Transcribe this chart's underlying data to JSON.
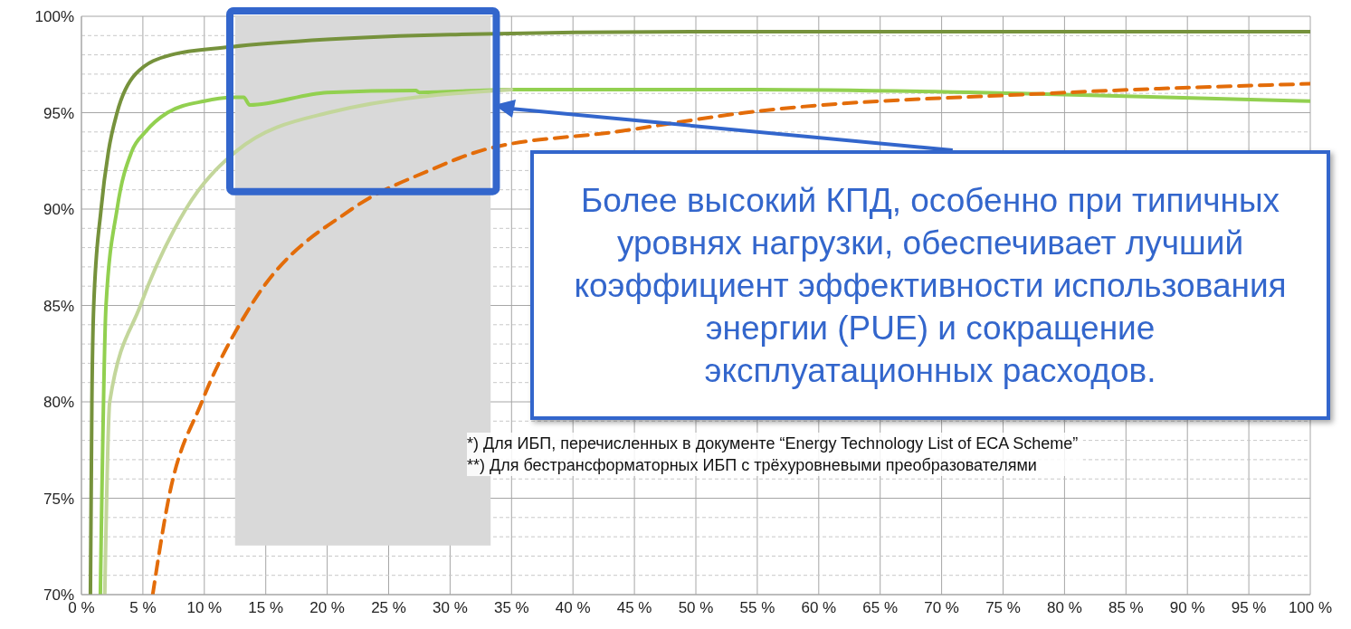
{
  "chart_data": {
    "type": "line",
    "xlim": [
      0,
      100
    ],
    "xticks": [
      {
        "value": 0,
        "label": "0 %"
      },
      {
        "value": 5,
        "label": "5 %"
      },
      {
        "value": 10,
        "label": "10 %"
      },
      {
        "value": 15,
        "label": "15 %"
      },
      {
        "value": 20,
        "label": "20 %"
      },
      {
        "value": 25,
        "label": "25 %"
      },
      {
        "value": 30,
        "label": "30 %"
      },
      {
        "value": 35,
        "label": "35 %"
      },
      {
        "value": 40,
        "label": "40 %"
      },
      {
        "value": 45,
        "label": "45 %"
      },
      {
        "value": 50,
        "label": "50 %"
      },
      {
        "value": 55,
        "label": "55 %"
      },
      {
        "value": 60,
        "label": "60 %"
      },
      {
        "value": 65,
        "label": "65 %"
      },
      {
        "value": 70,
        "label": "70 %"
      },
      {
        "value": 75,
        "label": "75 %"
      },
      {
        "value": 80,
        "label": "80 %"
      },
      {
        "value": 85,
        "label": "85 %"
      },
      {
        "value": 90,
        "label": "90 %"
      },
      {
        "value": 95,
        "label": "95 %"
      },
      {
        "value": 100,
        "label": "100 %"
      }
    ],
    "ylim": [
      70,
      100
    ],
    "yticks": [
      {
        "value": 70,
        "label": "70%"
      },
      {
        "value": 71,
        "label": null
      },
      {
        "value": 72,
        "label": null
      },
      {
        "value": 73,
        "label": null
      },
      {
        "value": 74,
        "label": null
      },
      {
        "value": 75,
        "label": "75%"
      },
      {
        "value": 76,
        "label": null
      },
      {
        "value": 77,
        "label": null
      },
      {
        "value": 78,
        "label": null
      },
      {
        "value": 79,
        "label": null
      },
      {
        "value": 80,
        "label": "80%"
      },
      {
        "value": 81,
        "label": null
      },
      {
        "value": 82,
        "label": null
      },
      {
        "value": 83,
        "label": null
      },
      {
        "value": 84,
        "label": null
      },
      {
        "value": 85,
        "label": "85%"
      },
      {
        "value": 86,
        "label": null
      },
      {
        "value": 87,
        "label": null
      },
      {
        "value": 88,
        "label": null
      },
      {
        "value": 89,
        "label": null
      },
      {
        "value": 90,
        "label": "90%"
      },
      {
        "value": 91,
        "label": null
      },
      {
        "value": 92,
        "label": null
      },
      {
        "value": 93,
        "label": null
      },
      {
        "value": 94,
        "label": null
      },
      {
        "value": 95,
        "label": "95%"
      },
      {
        "value": 96,
        "label": null
      },
      {
        "value": 97,
        "label": null
      },
      {
        "value": 98,
        "label": null
      },
      {
        "value": 99,
        "label": null
      },
      {
        "value": 100,
        "label": "100%"
      }
    ],
    "grid": true,
    "series": [
      {
        "color": "#76923c",
        "line_style": "solid",
        "x": [
          0.73,
          0.85,
          1.0,
          1.6,
          2.2,
          2.9,
          4.4,
          7.3,
          12,
          20,
          30,
          50,
          100
        ],
        "values": [
          70,
          80,
          85,
          90,
          93,
          95,
          97,
          98,
          98.4,
          98.8,
          99.05,
          99.2,
          99.2
        ]
      },
      {
        "color": "#92d050",
        "line_style": "solid",
        "x": [
          1.54,
          2.0,
          2.9,
          4.1,
          5.2,
          7.0,
          10,
          12.5,
          13.2,
          13.7,
          20,
          27.2,
          27.5,
          35,
          55,
          76.4,
          100
        ],
        "values": [
          70,
          85,
          90,
          93,
          94,
          95,
          95.6,
          95.8,
          95.8,
          95.4,
          96.05,
          96.15,
          96.05,
          96.2,
          96.2,
          96.0,
          95.6
        ]
      },
      {
        "color": "#c3d69b",
        "line_style": "solid",
        "x": [
          1.9,
          2.3,
          4.8,
          8.5,
          12.6,
          20.1,
          35
        ],
        "values": [
          70,
          80,
          85,
          90,
          93,
          95,
          96.2
        ]
      },
      {
        "color": "#e36c09",
        "line_style": "dashed",
        "x": [
          5.8,
          7.1,
          9.8,
          13.8,
          22,
          28.3,
          32.9,
          43.4,
          54,
          78.6,
          100
        ],
        "values": [
          70,
          75,
          80,
          85,
          90,
          92,
          93.1,
          94,
          95,
          96,
          96.5
        ]
      }
    ],
    "bands": [
      {
        "axis": "x",
        "from": 12.5,
        "to": 33.3,
        "color": "#d9d9d9"
      }
    ],
    "annotations": [
      "Более высокий КПД, особенно при типичных уровнях нагрузки, обеспечивает лучший коэффициент эффективности использования энергии (PUE) и сокращение эксплуатационных расходов.",
      "*) Для ИБП, перечисленных в документе “Energy Technology List of ECA Scheme”",
      "**) Для бестрансформаторных ИБП с трёхуровневыми преобразователями"
    ]
  }
}
